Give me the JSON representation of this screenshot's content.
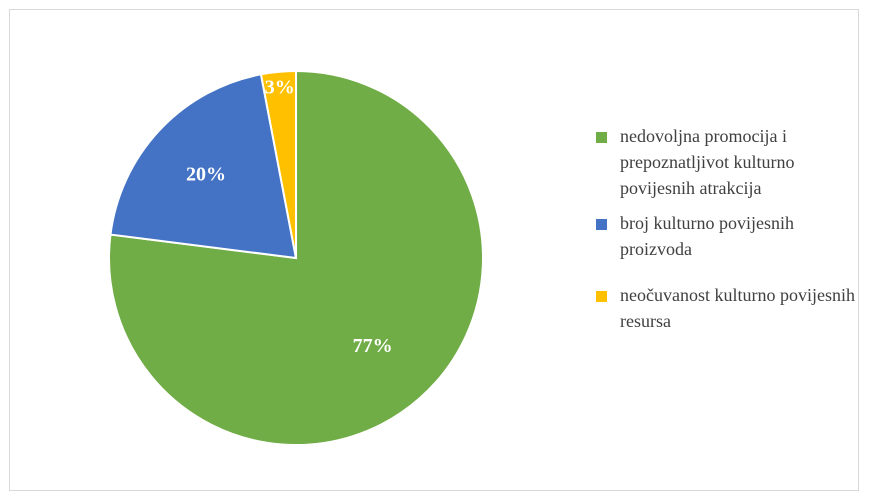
{
  "chart_data": {
    "type": "pie",
    "slices": [
      {
        "label": "nedovoljna promocija i prepoznatljivot kulturno povijesnih atrakcija",
        "value": 77,
        "display": "77%",
        "color": "#70ad47"
      },
      {
        "label": "broj kulturno povijesnih proizvoda",
        "value": 20,
        "display": "20%",
        "color": "#4472c4"
      },
      {
        "label": "neočuvanost kulturno povijesnih resursa",
        "value": 3,
        "display": "3%",
        "color": "#ffc000"
      }
    ],
    "legend_placement": "right"
  }
}
